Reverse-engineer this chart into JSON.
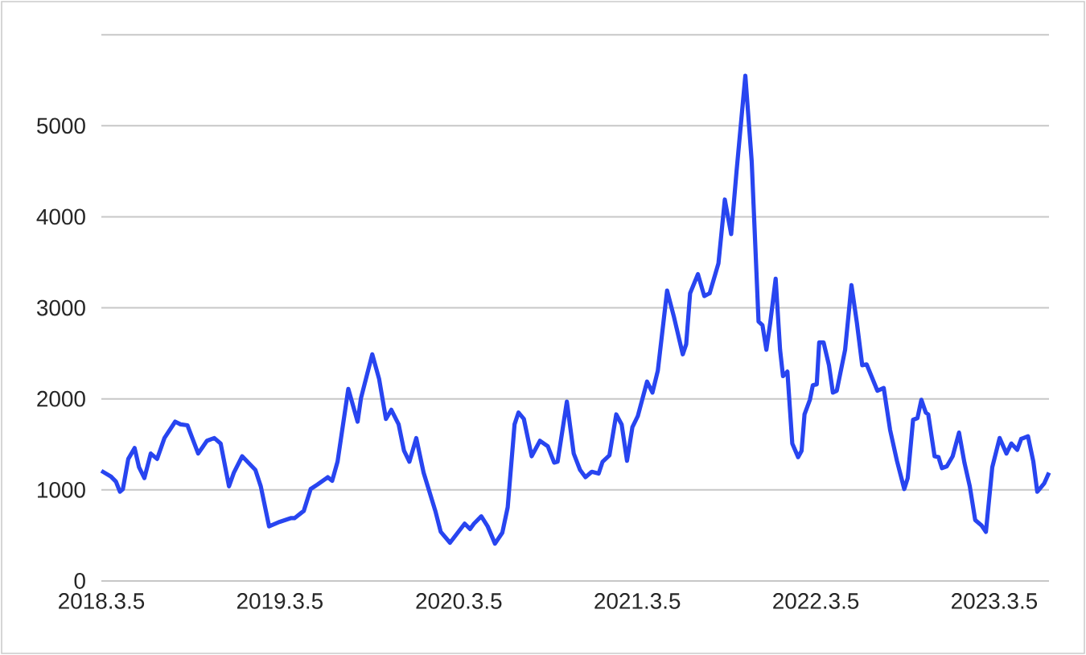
{
  "chart_data": {
    "type": "line",
    "x": [
      "2018-03-05",
      "2018-03-24",
      "2018-04-04",
      "2018-04-12",
      "2018-04-18",
      "2018-04-29",
      "2018-05-12",
      "2018-05-21",
      "2018-06-01",
      "2018-06-14",
      "2018-06-27",
      "2018-07-12",
      "2018-08-03",
      "2018-08-14",
      "2018-08-28",
      "2018-09-19",
      "2018-10-07",
      "2018-10-22",
      "2018-11-04",
      "2018-11-21",
      "2018-12-01",
      "2018-12-18",
      "2019-01-14",
      "2019-01-25",
      "2019-02-11",
      "2019-03-05",
      "2019-03-27",
      "2019-04-04",
      "2019-04-23",
      "2019-05-07",
      "2019-05-21",
      "2019-06-11",
      "2019-06-20",
      "2019-07-01",
      "2019-07-23",
      "2019-08-11",
      "2019-08-18",
      "2019-09-10",
      "2019-09-24",
      "2019-10-08",
      "2019-10-19",
      "2019-11-03",
      "2019-11-14",
      "2019-11-25",
      "2019-12-09",
      "2019-12-24",
      "2020-01-17",
      "2020-01-28",
      "2020-02-16",
      "2020-03-17",
      "2020-03-28",
      "2020-04-05",
      "2020-04-20",
      "2020-05-03",
      "2020-05-18",
      "2020-06-02",
      "2020-06-13",
      "2020-06-27",
      "2020-07-05",
      "2020-07-16",
      "2020-08-01",
      "2020-08-18",
      "2020-09-03",
      "2020-09-16",
      "2020-09-23",
      "2020-10-12",
      "2020-10-26",
      "2020-11-08",
      "2020-11-19",
      "2020-12-02",
      "2020-12-16",
      "2020-12-24",
      "2021-01-07",
      "2021-01-21",
      "2021-02-01",
      "2021-02-12",
      "2021-02-23",
      "2021-03-06",
      "2021-03-25",
      "2021-04-05",
      "2021-04-16",
      "2021-05-05",
      "2021-05-19",
      "2021-06-06",
      "2021-06-13",
      "2021-06-21",
      "2021-07-07",
      "2021-07-20",
      "2021-07-31",
      "2021-08-18",
      "2021-08-31",
      "2021-09-13",
      "2021-09-24",
      "2021-10-12",
      "2021-10-25",
      "2021-11-08",
      "2021-11-16",
      "2021-11-24",
      "2021-12-02",
      "2021-12-13",
      "2021-12-22",
      "2021-12-28",
      "2022-01-06",
      "2022-01-16",
      "2022-01-28",
      "2022-02-04",
      "2022-02-10",
      "2022-02-21",
      "2022-02-27",
      "2022-03-07",
      "2022-03-12",
      "2022-03-21",
      "2022-04-01",
      "2022-04-09",
      "2022-04-17",
      "2022-05-04",
      "2022-05-17",
      "2022-05-28",
      "2022-06-08",
      "2022-06-17",
      "2022-07-09",
      "2022-07-22",
      "2022-08-04",
      "2022-08-18",
      "2022-09-02",
      "2022-09-09",
      "2022-09-20",
      "2022-09-29",
      "2022-10-07",
      "2022-10-16",
      "2022-10-21",
      "2022-11-03",
      "2022-11-11",
      "2022-11-18",
      "2022-11-28",
      "2022-12-10",
      "2022-12-23",
      "2023-01-03",
      "2023-01-14",
      "2023-01-25",
      "2023-02-07",
      "2023-02-16",
      "2023-03-01",
      "2023-03-16",
      "2023-03-30",
      "2023-04-09",
      "2023-04-21",
      "2023-04-29",
      "2023-05-13",
      "2023-05-24",
      "2023-06-01",
      "2023-06-15",
      "2023-06-25"
    ],
    "series": [
      {
        "color": "#2845f0",
        "values": [
          1210,
          1150,
          1090,
          980,
          1010,
          1340,
          1460,
          1250,
          1130,
          1400,
          1340,
          1570,
          1750,
          1720,
          1710,
          1400,
          1540,
          1570,
          1510,
          1040,
          1190,
          1370,
          1220,
          1040,
          600,
          650,
          690,
          690,
          770,
          1010,
          1060,
          1140,
          1100,
          1310,
          2110,
          1750,
          2010,
          2490,
          2220,
          1780,
          1880,
          1720,
          1430,
          1310,
          1570,
          1190,
          770,
          540,
          420,
          630,
          570,
          630,
          710,
          600,
          410,
          530,
          810,
          1720,
          1850,
          1780,
          1370,
          1540,
          1480,
          1300,
          1310,
          1970,
          1400,
          1220,
          1140,
          1200,
          1180,
          1310,
          1380,
          1830,
          1720,
          1320,
          1690,
          1810,
          2190,
          2070,
          2310,
          3190,
          2900,
          2490,
          2600,
          3160,
          3370,
          3130,
          3160,
          3490,
          4190,
          3810,
          4500,
          5550,
          4610,
          2850,
          2810,
          2540,
          2840,
          3320,
          2540,
          2250,
          2300,
          1510,
          1360,
          1430,
          1830,
          1990,
          2150,
          2160,
          2620,
          2620,
          2370,
          2070,
          2090,
          2540,
          3250,
          2840,
          2370,
          2380,
          2090,
          2120,
          1660,
          1320,
          1010,
          1130,
          1770,
          1790,
          1990,
          1850,
          1830,
          1370,
          1360,
          1240,
          1260,
          1370,
          1630,
          1300,
          1040,
          670,
          610,
          540,
          1250,
          1570,
          1400,
          1510,
          1440,
          1560,
          1590,
          1310,
          980,
          1070,
          1190
        ]
      }
    ],
    "xlim": [
      "2018-03-05",
      "2023-06-25"
    ],
    "xticks": [
      {
        "value": "2018-03-05",
        "label": "2018.3.5"
      },
      {
        "value": "2019-03-05",
        "label": "2019.3.5"
      },
      {
        "value": "2020-03-05",
        "label": "2020.3.5"
      },
      {
        "value": "2021-03-05",
        "label": "2021.3.5"
      },
      {
        "value": "2022-03-05",
        "label": "2022.3.5"
      },
      {
        "value": "2023-03-05",
        "label": "2023.3.5"
      }
    ],
    "ylim": [
      0,
      6000
    ],
    "yticks": [
      0,
      1000,
      2000,
      3000,
      4000,
      5000,
      {
        "value": 6000,
        "label": null
      }
    ],
    "grid": "y",
    "line_style": "solid"
  }
}
